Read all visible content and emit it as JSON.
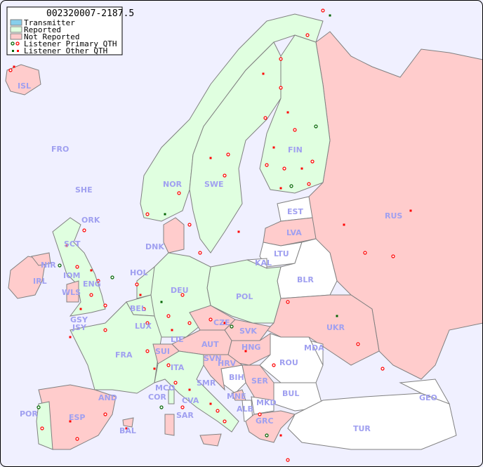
{
  "title": "002320007-2187.5",
  "legend": {
    "items": [
      {
        "label": "Transmitter",
        "color": "#87ceeb"
      },
      {
        "label": "Reported",
        "color": "#e0ffe0"
      },
      {
        "label": "Not Reported",
        "color": "#ffcccc"
      },
      {
        "label": "Listener Primary QTH",
        "colors": [
          "#006400",
          "#ff0000"
        ]
      },
      {
        "label": "Listener Other QTH",
        "colors": [
          "#006400",
          "#ff0000"
        ]
      }
    ]
  },
  "colors": {
    "sea": "#f0f0ff",
    "reported": "#e0ffe0",
    "not_reported": "#ffcccc",
    "no_data": "#ffffff",
    "border": "#808080",
    "label": "#a0a0f0"
  },
  "countries": {
    "ISL": "ISL",
    "FRO": "FRO",
    "SHE": "SHE",
    "ORK": "ORK",
    "NOR": "NOR",
    "SWE": "SWE",
    "FIN": "FIN",
    "EST": "EST",
    "RUS": "RUS",
    "LVA": "LVA",
    "LTU": "LTU",
    "KAL": "KAL",
    "BLR": "BLR",
    "DNK": "DNK",
    "SCT": "SCT",
    "NIR": "NIR",
    "IRL": "IRL",
    "IOM": "IOM",
    "WLS": "WLS",
    "ENG": "ENG",
    "HOL": "HOL",
    "DEU": "DEU",
    "POL": "POL",
    "BEL": "BEL",
    "GSY": "GSY",
    "JSY": "JSY",
    "LUX": "LUX",
    "CZE": "CZE",
    "SVK": "SVK",
    "UKR": "UKR",
    "FRA": "FRA",
    "LIE": "LIE",
    "AUT": "AUT",
    "HNG": "HNG",
    "MDA": "MDA",
    "SUI": "SUI",
    "SVN": "SVN",
    "HRV": "HRV",
    "ROU": "ROU",
    "ITA": "ITA",
    "BIH": "BIH",
    "SRB": "SER",
    "SMR": "SMR",
    "MCO": "MCO",
    "COR": "COR",
    "CVA": "CVA",
    "MNE": "MNE",
    "BUL": "BUL",
    "GEO": "GEO",
    "AND": "AND",
    "ALB": "ALB",
    "MKD": "MKD",
    "POR": "POR",
    "ESP": "ESP",
    "BAL": "BAL",
    "SAR": "SAR",
    "GRC": "GRC",
    "TUR": "TUR"
  }
}
